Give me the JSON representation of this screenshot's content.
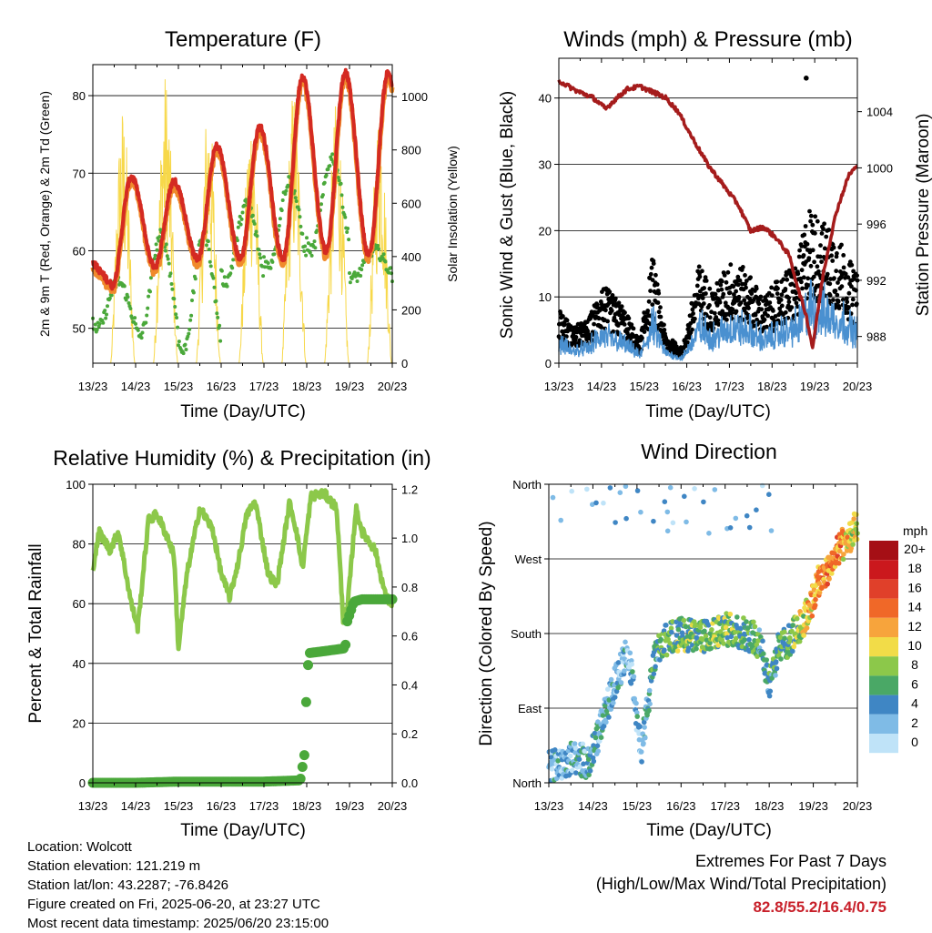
{
  "time_ticks": [
    "13/23",
    "14/23",
    "15/23",
    "16/23",
    "17/23",
    "18/23",
    "19/23",
    "20/23"
  ],
  "panels": {
    "temperature": {
      "title": "Temperature (F)",
      "ylabel_left": "2m & 9m T (Red, Orange) & 2m Td (Green)",
      "ylabel_right": "Solar Insolation (Yellow)",
      "xlabel": "Time (Day/UTC)"
    },
    "winds": {
      "title": "Winds (mph) & Pressure (mb)",
      "ylabel_left": "Sonic Wind & Gust (Blue, Black)",
      "ylabel_right": "Station Pressure (Maroon)",
      "xlabel": "Time (Day/UTC)"
    },
    "humidity": {
      "title": "Relative Humidity (%) & Precipitation (in)",
      "ylabel_left": "Percent & Total Rainfall",
      "xlabel": "Time (Day/UTC)"
    },
    "direction": {
      "title": "Wind Direction",
      "ylabel_left": "Direction (Colored By Speed)",
      "xlabel": "Time (Day/UTC)",
      "direction_labels": [
        "North",
        "East",
        "South",
        "West",
        "North"
      ],
      "colorbar_title": "mph",
      "colorbar_labels": [
        "20+",
        "18",
        "16",
        "14",
        "12",
        "10",
        "8",
        "6",
        "4",
        "2",
        "0"
      ],
      "colorbar_colors": [
        "#a50f15",
        "#cb181d",
        "#e0402a",
        "#f06828",
        "#f7a43c",
        "#f2dc48",
        "#8cc84a",
        "#4aa866",
        "#3f86c4",
        "#7fbbe6",
        "#bfe3f8"
      ]
    }
  },
  "info": {
    "location": "Location: Wolcott",
    "elevation": "Station elevation: 121.219 m",
    "latlon": "Station lat/lon: 43.2287; -76.8426",
    "created": "Figure created on Fri, 2025-06-20, at 23:27 UTC",
    "recent": "Most recent data timestamp: 2025/06/20 23:15:00"
  },
  "extremes": {
    "title": "Extremes For Past 7 Days",
    "subtitle": "(High/Low/Max Wind/Total Precipitation)",
    "values": "82.8/55.2/16.4/0.75"
  },
  "chart_data": [
    {
      "type": "line",
      "title": "Temperature (F)",
      "xlabel": "Time (Day/UTC)",
      "x_ticks": [
        "13/23",
        "14/23",
        "15/23",
        "16/23",
        "17/23",
        "18/23",
        "19/23",
        "20/23"
      ],
      "xlim": [
        0,
        7
      ],
      "ylim": [
        45.5,
        84
      ],
      "ylim_right": [
        0,
        1120
      ],
      "y_ticks": [
        50,
        60,
        70,
        80
      ],
      "y_ticks_right": [
        0,
        200,
        400,
        600,
        800,
        1000
      ],
      "grid": true,
      "colors": {
        "t2m": "#d42a22",
        "t9m": "#f08a2c",
        "td": "#4aa83a",
        "solar": "#f7d84a"
      },
      "daily_t_min": [
        55.5,
        58,
        59,
        59,
        59,
        60,
        59.5,
        60
      ],
      "daily_t_max": [
        69.5,
        69,
        73.5,
        76,
        82.5,
        83
      ],
      "daily_td_min": [
        50,
        49,
        47,
        56,
        58,
        60,
        56.5
      ],
      "daily_td_max": [
        56,
        62,
        62,
        66,
        69,
        72,
        60
      ],
      "daily_solar_max": [
        980,
        1100,
        1000,
        980,
        1050,
        1000,
        980
      ]
    },
    {
      "type": "scatter",
      "title": "Winds (mph) & Pressure (mb)",
      "xlabel": "Time (Day/UTC)",
      "x_ticks": [
        "13/23",
        "14/23",
        "15/23",
        "16/23",
        "17/23",
        "18/23",
        "19/23",
        "20/23"
      ],
      "xlim": [
        0,
        7
      ],
      "ylim": [
        0,
        46
      ],
      "ylim_right": [
        986.1,
        1007.8
      ],
      "y_ticks": [
        0,
        10,
        20,
        30,
        40
      ],
      "y_ticks_right": [
        988,
        992,
        996,
        1000,
        1004
      ],
      "grid": true,
      "colors": {
        "wind": "#4a90d0",
        "gust": "#000000",
        "pressure": "#a51c1c"
      },
      "pressure_t": [
        0,
        0.4,
        0.8,
        1.1,
        1.3,
        1.6,
        1.9,
        2.2,
        2.5,
        2.8,
        3.1,
        3.5,
        3.9,
        4.2,
        4.5,
        4.8,
        5.1,
        5.4,
        5.6,
        5.8,
        5.95,
        6.2,
        6.5,
        6.8,
        6.95
      ],
      "pressure_values": [
        1006.2,
        1005.5,
        1005,
        1004.2,
        1004.8,
        1005.6,
        1005.8,
        1005.4,
        1005,
        1004,
        1002.3,
        1000.2,
        998.6,
        997.4,
        995.5,
        995.8,
        995,
        993.8,
        991.5,
        989.5,
        987.2,
        992.5,
        996.8,
        999.5,
        1000
      ],
      "gust_peak": 43
    },
    {
      "type": "line",
      "title": "Relative Humidity (%) & Precipitation (in)",
      "xlabel": "Time (Day/UTC)",
      "ylabel": "Percent & Total Rainfall",
      "x_ticks": [
        "13/23",
        "14/23",
        "15/23",
        "16/23",
        "17/23",
        "18/23",
        "19/23",
        "20/23"
      ],
      "xlim": [
        0,
        7
      ],
      "ylim": [
        0,
        100
      ],
      "ylim_right": [
        0,
        1.22
      ],
      "y_ticks": [
        0,
        20,
        40,
        60,
        80,
        100
      ],
      "y_ticks_right": [
        0.0,
        0.2,
        0.4,
        0.6,
        0.8,
        1.0,
        1.2
      ],
      "grid": true,
      "colors": {
        "rh": "#8cc84a",
        "precip": "#4aa83a"
      },
      "precip_t": [
        0,
        1,
        2,
        3,
        4,
        4.85,
        4.95,
        5.0,
        5.05,
        5.5,
        5.9,
        5.95,
        6.1,
        6.3,
        7
      ],
      "precip_values": [
        0,
        0,
        0.005,
        0.005,
        0.005,
        0.01,
        0.12,
        0.4,
        0.53,
        0.54,
        0.55,
        0.66,
        0.74,
        0.75,
        0.75
      ],
      "total_precip": 0.75
    },
    {
      "type": "scatter",
      "title": "Wind Direction",
      "xlabel": "Time (Day/UTC)",
      "x_ticks": [
        "13/23",
        "14/23",
        "15/23",
        "16/23",
        "17/23",
        "18/23",
        "19/23",
        "20/23"
      ],
      "y_tick_labels": [
        "North",
        "East",
        "South",
        "West",
        "North"
      ],
      "xlim": [
        0,
        7
      ],
      "ylim": [
        0,
        360
      ],
      "grid": true,
      "colorbar": {
        "title": "mph",
        "labels": [
          "20+",
          "18",
          "16",
          "14",
          "12",
          "10",
          "8",
          "6",
          "4",
          "2",
          "0"
        ]
      }
    }
  ]
}
